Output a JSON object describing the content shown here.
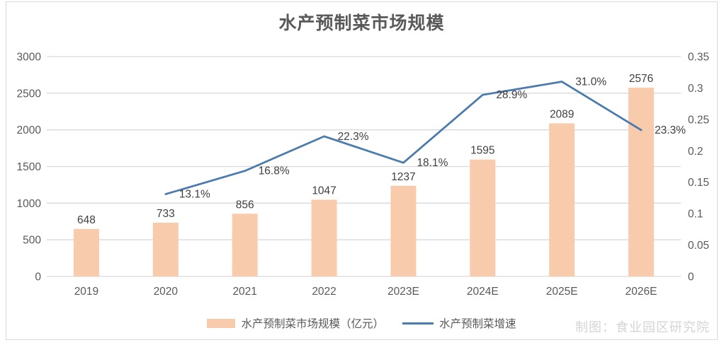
{
  "watermark": "制图：食业园区研究院",
  "colors": {
    "bar": "#f8cbad",
    "line": "#4a7aae",
    "grid": "#d9d9d9",
    "frame_border": "#d9d9d9",
    "tick_text": "#595959",
    "data_label_text": "#404040",
    "title_text": "#595959",
    "watermark_text": "#d4d4d4"
  },
  "chart_data": {
    "type": "combo-bar-line",
    "title": "水产预制菜市场规模",
    "categories": [
      "2019",
      "2020",
      "2021",
      "2022",
      "2023E",
      "2024E",
      "2025E",
      "2026E"
    ],
    "series": [
      {
        "name": "水产预制菜市场规模（亿元）",
        "type": "bar",
        "axis": "left",
        "values": [
          648,
          733,
          856,
          1047,
          1237,
          1595,
          2089,
          2576
        ],
        "labels": [
          "648",
          "733",
          "856",
          "1047",
          "1237",
          "1595",
          "2089",
          "2576"
        ],
        "color": "#f8cbad"
      },
      {
        "name": "水产预制菜增速",
        "type": "line",
        "axis": "right",
        "values": [
          null,
          0.131,
          0.168,
          0.223,
          0.181,
          0.289,
          0.31,
          0.233
        ],
        "labels": [
          "",
          "13.1%",
          "16.8%",
          "22.3%",
          "18.1%",
          "28.9%",
          "31.0%",
          "23.3%"
        ],
        "color": "#4a7aae"
      }
    ],
    "left_axis": {
      "min": 0,
      "max": 3000,
      "ticks": [
        "0",
        "500",
        "1000",
        "1500",
        "2000",
        "2500",
        "3000"
      ]
    },
    "right_axis": {
      "min": 0,
      "max": 0.35,
      "ticks": [
        "0",
        "0.05",
        "0.1",
        "0.15",
        "0.2",
        "0.25",
        "0.3",
        "0.35"
      ]
    },
    "grid": true,
    "legend_position": "bottom"
  }
}
